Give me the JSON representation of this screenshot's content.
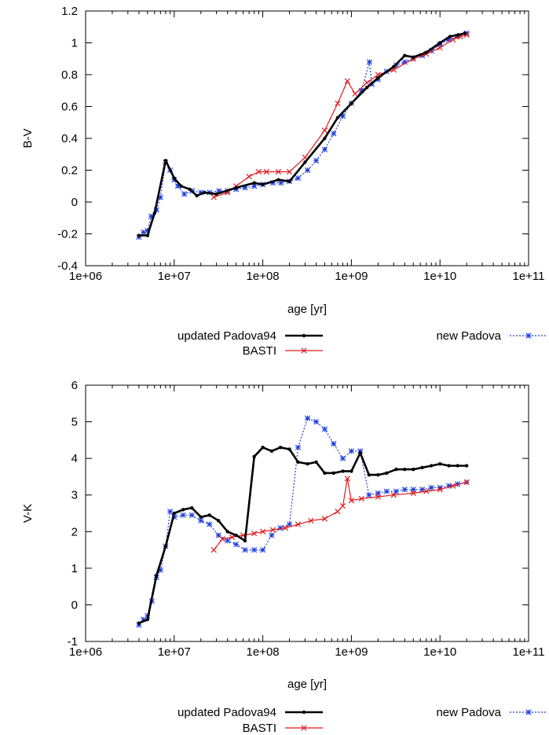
{
  "chart_data": [
    {
      "type": "line",
      "xscale": "log",
      "xlabel": "age [yr]",
      "ylabel": "B-V",
      "xlim": [
        1000000,
        100000000000
      ],
      "ylim": [
        -0.4,
        1.2
      ],
      "xticks": [
        "1e+06",
        "1e+07",
        "1e+08",
        "1e+09",
        "1e+10",
        "1e+11"
      ],
      "yticks": [
        "-0.4",
        "-0.2",
        "0",
        "0.2",
        "0.4",
        "0.6",
        "0.8",
        "1",
        "1.2"
      ],
      "legend_position": "below",
      "series": [
        {
          "name": "updated Padova94",
          "color": "#000000",
          "style": "solid-thick",
          "marker": "dot",
          "points": [
            [
              4000000,
              -0.21
            ],
            [
              5000000,
              -0.21
            ],
            [
              6000000,
              -0.07
            ],
            [
              8000000,
              0.26
            ],
            [
              10000000,
              0.15
            ],
            [
              12000000,
              0.1
            ],
            [
              15000000,
              0.08
            ],
            [
              18000000,
              0.04
            ],
            [
              22000000,
              0.06
            ],
            [
              30000000,
              0.05
            ],
            [
              50000000,
              0.09
            ],
            [
              80000000,
              0.12
            ],
            [
              100000000,
              0.11
            ],
            [
              150000000,
              0.14
            ],
            [
              200000000,
              0.13
            ],
            [
              300000000,
              0.25
            ],
            [
              500000000,
              0.4
            ],
            [
              700000000,
              0.53
            ],
            [
              1000000000,
              0.62
            ],
            [
              1500000000,
              0.72
            ],
            [
              2000000000,
              0.78
            ],
            [
              3000000000,
              0.85
            ],
            [
              4000000000,
              0.92
            ],
            [
              5000000000,
              0.91
            ],
            [
              7000000000,
              0.94
            ],
            [
              10000000000,
              1.0
            ],
            [
              13000000000,
              1.04
            ],
            [
              16000000000,
              1.05
            ],
            [
              19000000000,
              1.06
            ]
          ]
        },
        {
          "name": "BASTI",
          "color": "#e31a1c",
          "style": "solid",
          "marker": "x",
          "points": [
            [
              28000000,
              0.03
            ],
            [
              40000000,
              0.06
            ],
            [
              50000000,
              0.1
            ],
            [
              70000000,
              0.16
            ],
            [
              90000000,
              0.19
            ],
            [
              110000000,
              0.19
            ],
            [
              150000000,
              0.19
            ],
            [
              200000000,
              0.19
            ],
            [
              300000000,
              0.28
            ],
            [
              500000000,
              0.45
            ],
            [
              700000000,
              0.62
            ],
            [
              900000000,
              0.76
            ],
            [
              1100000000,
              0.68
            ],
            [
              1500000000,
              0.75
            ],
            [
              2000000000,
              0.8
            ],
            [
              3000000000,
              0.83
            ],
            [
              5000000000,
              0.9
            ],
            [
              7000000000,
              0.93
            ],
            [
              10000000000,
              0.97
            ],
            [
              14000000000,
              1.02
            ],
            [
              17000000000,
              1.04
            ],
            [
              20000000000,
              1.05
            ]
          ]
        },
        {
          "name": "new Padova",
          "color": "#1f3fdf",
          "style": "dotted",
          "marker": "star",
          "points": [
            [
              4000000,
              -0.22
            ],
            [
              4500000,
              -0.19
            ],
            [
              5000000,
              -0.18
            ],
            [
              5500000,
              -0.09
            ],
            [
              6300000,
              -0.05
            ],
            [
              7000000,
              0.03
            ],
            [
              8000000,
              0.25
            ],
            [
              9000000,
              0.2
            ],
            [
              10000000,
              0.14
            ],
            [
              11000000,
              0.1
            ],
            [
              13000000,
              0.05
            ],
            [
              16000000,
              0.07
            ],
            [
              20000000,
              0.06
            ],
            [
              25000000,
              0.06
            ],
            [
              32000000,
              0.07
            ],
            [
              40000000,
              0.07
            ],
            [
              50000000,
              0.08
            ],
            [
              63000000,
              0.09
            ],
            [
              80000000,
              0.1
            ],
            [
              100000000,
              0.11
            ],
            [
              130000000,
              0.12
            ],
            [
              160000000,
              0.12
            ],
            [
              200000000,
              0.13
            ],
            [
              250000000,
              0.15
            ],
            [
              320000000,
              0.2
            ],
            [
              400000000,
              0.26
            ],
            [
              500000000,
              0.33
            ],
            [
              630000000,
              0.43
            ],
            [
              800000000,
              0.54
            ],
            [
              1000000000,
              0.62
            ],
            [
              1300000000,
              0.7
            ],
            [
              1600000000,
              0.88
            ],
            [
              1700000000,
              0.74
            ],
            [
              2000000000,
              0.77
            ],
            [
              2500000000,
              0.82
            ],
            [
              3200000000,
              0.86
            ],
            [
              4000000000,
              0.88
            ],
            [
              5000000000,
              0.9
            ],
            [
              6300000000,
              0.92
            ],
            [
              8000000000,
              0.95
            ],
            [
              10000000000,
              0.99
            ],
            [
              12600000000,
              1.02
            ],
            [
              15800000000,
              1.04
            ],
            [
              20000000000,
              1.06
            ]
          ]
        }
      ]
    },
    {
      "type": "line",
      "xscale": "log",
      "xlabel": "age [yr]",
      "ylabel": "V-K",
      "xlim": [
        1000000,
        100000000000
      ],
      "ylim": [
        -1,
        6
      ],
      "xticks": [
        "1e+06",
        "1e+07",
        "1e+08",
        "1e+09",
        "1e+10",
        "1e+11"
      ],
      "yticks": [
        "-1",
        "0",
        "1",
        "2",
        "3",
        "4",
        "5",
        "6"
      ],
      "legend_position": "below",
      "series": [
        {
          "name": "updated Padova94",
          "color": "#000000",
          "style": "solid-thick",
          "marker": "dot",
          "points": [
            [
              4000000,
              -0.5
            ],
            [
              5000000,
              -0.4
            ],
            [
              6300000,
              0.8
            ],
            [
              8000000,
              1.6
            ],
            [
              10000000,
              2.5
            ],
            [
              12600000,
              2.6
            ],
            [
              15800000,
              2.65
            ],
            [
              20000000,
              2.4
            ],
            [
              25000000,
              2.45
            ],
            [
              31600000,
              2.3
            ],
            [
              40000000,
              2.0
            ],
            [
              50000000,
              1.9
            ],
            [
              63000000,
              1.75
            ],
            [
              80000000,
              4.05
            ],
            [
              100000000,
              4.3
            ],
            [
              126000000,
              4.2
            ],
            [
              158000000,
              4.3
            ],
            [
              200000000,
              4.25
            ],
            [
              250000000,
              3.9
            ],
            [
              320000000,
              3.85
            ],
            [
              400000000,
              3.9
            ],
            [
              500000000,
              3.6
            ],
            [
              630000000,
              3.6
            ],
            [
              800000000,
              3.65
            ],
            [
              1000000000,
              3.65
            ],
            [
              1260000000,
              4.15
            ],
            [
              1580000000,
              3.55
            ],
            [
              2000000000,
              3.55
            ],
            [
              2500000000,
              3.6
            ],
            [
              3200000000,
              3.7
            ],
            [
              4000000000,
              3.7
            ],
            [
              5000000000,
              3.7
            ],
            [
              6300000000,
              3.75
            ],
            [
              8000000000,
              3.8
            ],
            [
              10000000000,
              3.85
            ],
            [
              12600000000,
              3.8
            ],
            [
              15800000000,
              3.8
            ],
            [
              20000000000,
              3.8
            ]
          ]
        },
        {
          "name": "BASTI",
          "color": "#e31a1c",
          "style": "solid",
          "marker": "x",
          "points": [
            [
              28000000,
              1.5
            ],
            [
              35000000,
              1.8
            ],
            [
              45000000,
              1.85
            ],
            [
              60000000,
              1.9
            ],
            [
              80000000,
              1.95
            ],
            [
              100000000,
              2.0
            ],
            [
              130000000,
              2.05
            ],
            [
              180000000,
              2.1
            ],
            [
              250000000,
              2.2
            ],
            [
              350000000,
              2.3
            ],
            [
              500000000,
              2.35
            ],
            [
              700000000,
              2.55
            ],
            [
              800000000,
              2.7
            ],
            [
              900000000,
              3.45
            ],
            [
              1000000000,
              2.85
            ],
            [
              1300000000,
              2.9
            ],
            [
              2000000000,
              2.95
            ],
            [
              3000000000,
              3.0
            ],
            [
              5000000000,
              3.05
            ],
            [
              7000000000,
              3.1
            ],
            [
              10000000000,
              3.15
            ],
            [
              14000000000,
              3.25
            ],
            [
              20000000000,
              3.35
            ]
          ]
        },
        {
          "name": "new Padova",
          "color": "#1f3fdf",
          "style": "dotted",
          "marker": "star",
          "points": [
            [
              4000000,
              -0.55
            ],
            [
              4500000,
              -0.4
            ],
            [
              5000000,
              -0.3
            ],
            [
              5600000,
              0.1
            ],
            [
              6300000,
              0.75
            ],
            [
              7000000,
              0.95
            ],
            [
              8000000,
              1.6
            ],
            [
              9000000,
              2.55
            ],
            [
              10000000,
              2.4
            ],
            [
              12600000,
              2.45
            ],
            [
              15800000,
              2.45
            ],
            [
              20000000,
              2.3
            ],
            [
              25000000,
              2.2
            ],
            [
              31600000,
              1.9
            ],
            [
              40000000,
              1.75
            ],
            [
              50000000,
              1.65
            ],
            [
              63000000,
              1.5
            ],
            [
              80000000,
              1.5
            ],
            [
              100000000,
              1.5
            ],
            [
              126000000,
              1.9
            ],
            [
              158000000,
              2.1
            ],
            [
              200000000,
              2.2
            ],
            [
              250000000,
              4.3
            ],
            [
              320000000,
              5.1
            ],
            [
              400000000,
              5.0
            ],
            [
              500000000,
              4.8
            ],
            [
              630000000,
              4.4
            ],
            [
              800000000,
              4.0
            ],
            [
              1000000000,
              4.2
            ],
            [
              1260000000,
              4.2
            ],
            [
              1580000000,
              3.0
            ],
            [
              2000000000,
              3.05
            ],
            [
              2500000000,
              3.1
            ],
            [
              3200000000,
              3.1
            ],
            [
              4000000000,
              3.15
            ],
            [
              5000000000,
              3.15
            ],
            [
              6300000000,
              3.15
            ],
            [
              8000000000,
              3.2
            ],
            [
              10000000000,
              3.2
            ],
            [
              12600000000,
              3.25
            ],
            [
              15800000000,
              3.3
            ],
            [
              20000000000,
              3.35
            ]
          ]
        }
      ]
    }
  ]
}
